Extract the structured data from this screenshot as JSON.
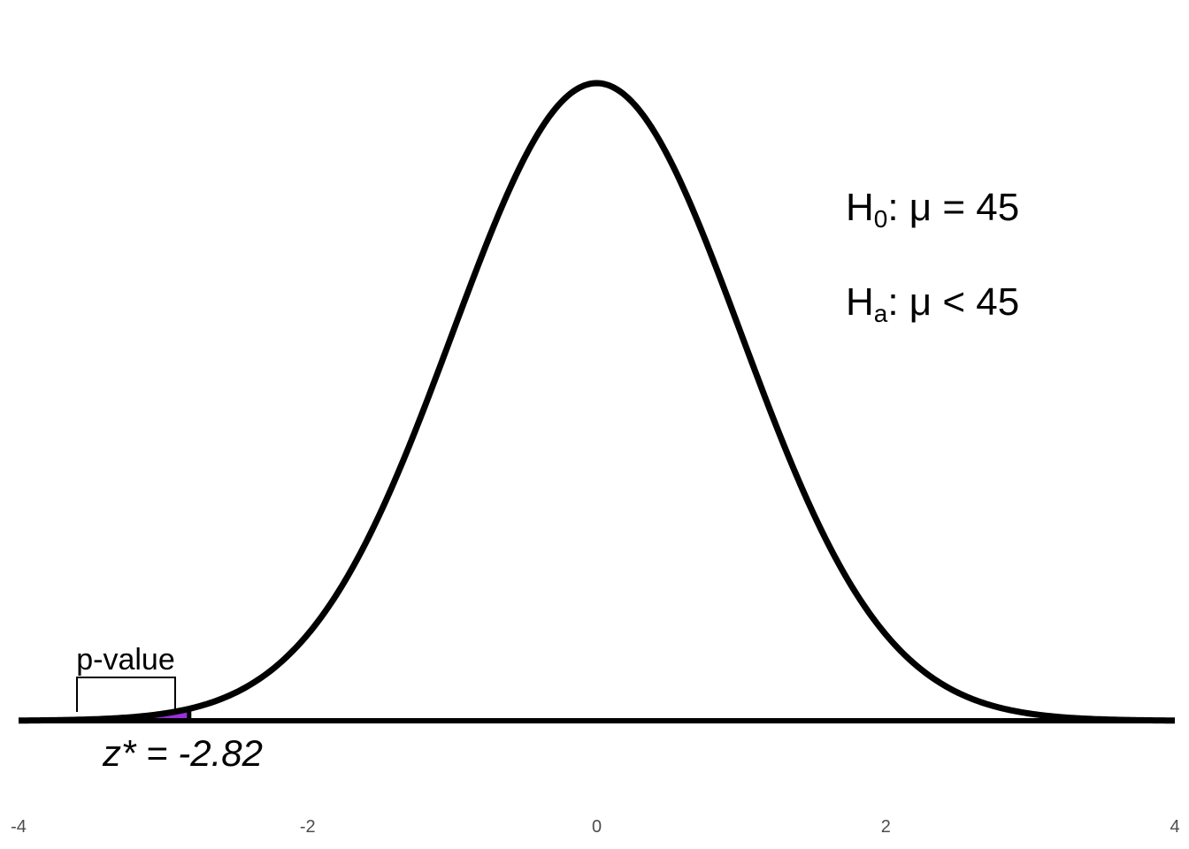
{
  "chart_data": {
    "type": "area",
    "distribution": "standard normal density",
    "x_range": [
      -4,
      4
    ],
    "x_ticks": [
      "-4",
      "-2",
      "0",
      "2",
      "4"
    ],
    "x_tick_values": [
      -4,
      -2,
      0,
      2,
      4
    ],
    "y_axis_visible": false,
    "grid": false,
    "shaded_region": {
      "from": -4,
      "to": -2.82,
      "label": "p-value",
      "color": "#9b30d9"
    },
    "critical_value": {
      "value": -2.82,
      "label_prefix": "z* = ",
      "label_value": "-2.82"
    },
    "hypotheses": {
      "null": {
        "symbol": "H",
        "subscript": "0",
        "relation": ":  μ = 45"
      },
      "alternative": {
        "symbol": "H",
        "subscript": "a",
        "relation": ":  μ < 45"
      }
    },
    "colors": {
      "curve": "#000000",
      "shade": "#9b30d9",
      "tick_text": "#4d4d4d"
    }
  }
}
